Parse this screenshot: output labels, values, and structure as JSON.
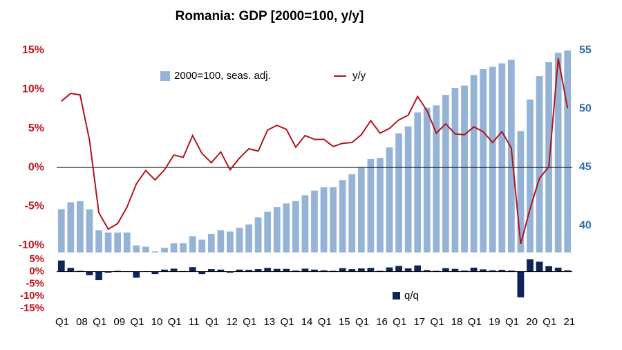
{
  "chart_data": [
    {
      "type": "combo",
      "title": "Romania: GDP [2000=100, y/y]",
      "categories": [
        "Q1 08",
        null,
        null,
        null,
        "Q1 09",
        null,
        null,
        null,
        "Q1 10",
        null,
        null,
        null,
        "Q1 11",
        null,
        null,
        null,
        "Q1 12",
        null,
        null,
        null,
        "Q1 13",
        null,
        null,
        null,
        "Q1 14",
        null,
        null,
        null,
        "Q1 15",
        null,
        null,
        null,
        "Q1 16",
        null,
        null,
        null,
        "Q1 17",
        null,
        null,
        null,
        "Q1 18",
        null,
        null,
        null,
        "Q1 19",
        null,
        null,
        null,
        "Q1 20",
        null,
        null,
        null,
        "Q1 21",
        null,
        null
      ],
      "series": [
        {
          "name": "2000=100, seas. adj.",
          "color": "#95b3d7",
          "axis": "y2",
          "kind": "bar",
          "values": [
            41.4,
            42.0,
            42.1,
            41.4,
            39.6,
            39.4,
            39.4,
            39.4,
            38.3,
            38.2,
            37.8,
            38.1,
            38.5,
            38.5,
            39.1,
            38.8,
            39.3,
            39.6,
            39.5,
            39.8,
            40.1,
            40.7,
            41.2,
            41.6,
            41.9,
            42.1,
            42.6,
            43.0,
            43.3,
            43.3,
            43.9,
            44.4,
            45.0,
            45.7,
            45.8,
            46.7,
            47.9,
            48.5,
            49.7,
            50.1,
            50.3,
            51.2,
            51.8,
            52.0,
            52.9,
            53.4,
            53.6,
            53.9,
            54.2,
            48.1,
            50.8,
            52.8,
            54.0,
            54.8,
            55.0
          ]
        },
        {
          "name": "y/y",
          "color": "#b0141c",
          "axis": "y",
          "kind": "line",
          "values": [
            8.5,
            9.5,
            9.3,
            3.5,
            -5.8,
            -7.9,
            -7.2,
            -5.1,
            -2.1,
            -0.4,
            -1.6,
            -0.3,
            1.6,
            1.3,
            4.1,
            1.8,
            0.6,
            2.0,
            -0.3,
            1.2,
            2.4,
            2.1,
            4.8,
            5.4,
            4.9,
            2.6,
            4.1,
            3.6,
            3.6,
            2.7,
            3.1,
            3.2,
            4.2,
            6.0,
            4.4,
            5.0,
            6.1,
            6.7,
            9.1,
            7.3,
            4.4,
            5.6,
            4.3,
            4.2,
            5.2,
            4.6,
            3.2,
            4.6,
            2.5,
            -9.8,
            -5.3,
            -1.4,
            0.1,
            14.0,
            7.6
          ]
        }
      ],
      "ylim": [
        -10.9,
        15
      ],
      "yticks": [
        {
          "value": -10,
          "label": "-10%"
        },
        {
          "value": -5,
          "label": "-5%"
        },
        {
          "value": 0,
          "label": "0%"
        },
        {
          "value": 5,
          "label": "5%"
        },
        {
          "value": 10,
          "label": "10%"
        },
        {
          "value": 15,
          "label": "15%"
        }
      ],
      "y2lim": [
        37.7,
        55
      ],
      "y2ticks": [
        40,
        45,
        50,
        55
      ],
      "grid": false
    },
    {
      "type": "bar",
      "series": [
        {
          "name": "q/q",
          "color": "#0f2557",
          "values": [
            4.5,
            1.5,
            0.3,
            -1.5,
            -3.5,
            -0.5,
            0.3,
            0.1,
            -2.5,
            0.1,
            -1.0,
            0.8,
            1.2,
            0.2,
            1.8,
            -1.0,
            1.0,
            0.8,
            -0.5,
            0.8,
            0.7,
            1.0,
            1.5,
            1.1,
            1.1,
            0.4,
            1.2,
            0.8,
            0.5,
            0.3,
            1.4,
            1.0,
            1.3,
            1.5,
            0.3,
            1.7,
            2.3,
            1.3,
            2.5,
            0.6,
            0.3,
            1.4,
            1.1,
            0.4,
            1.6,
            0.9,
            0.5,
            0.7,
            0.4,
            -10.5,
            5.0,
            4.0,
            2.2,
            1.6,
            0.5
          ]
        }
      ],
      "ylim": [
        -15.3,
        5.8
      ],
      "yticks": [
        {
          "value": -15,
          "label": "-15%"
        },
        {
          "value": -10,
          "label": "-10%"
        },
        {
          "value": -5,
          "label": "-5%"
        },
        {
          "value": 0,
          "label": "0%"
        },
        {
          "value": 5,
          "label": "5%"
        }
      ]
    }
  ]
}
